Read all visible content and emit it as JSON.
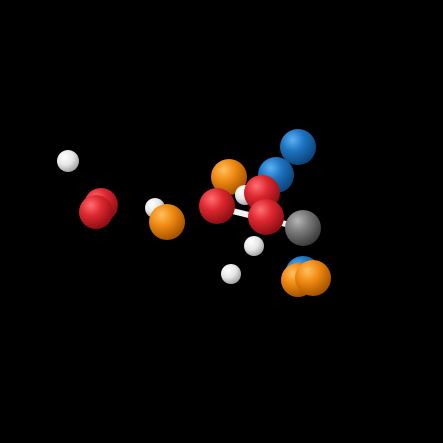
{
  "colors": {
    "background": "#000000",
    "red": "#d8232a",
    "orange": "#f08a12",
    "blue": "#1d74c2",
    "gray": "#7a7a7a",
    "white": "#ffffff"
  },
  "scene": {
    "atoms": [
      {
        "name": "atom-white-left",
        "color": "white"
      },
      {
        "name": "atom-red-left-back",
        "color": "red"
      },
      {
        "name": "atom-red-left-front",
        "color": "red"
      },
      {
        "name": "atom-white-mid-left",
        "color": "white"
      },
      {
        "name": "atom-orange-mid-left",
        "color": "orange"
      },
      {
        "name": "atom-orange-center-top",
        "color": "orange"
      },
      {
        "name": "atom-red-center-left",
        "color": "red"
      },
      {
        "name": "atom-white-center",
        "color": "white"
      },
      {
        "name": "atom-red-center-top",
        "color": "red"
      },
      {
        "name": "atom-red-center-bottom",
        "color": "red"
      },
      {
        "name": "atom-blue-upper-right",
        "color": "blue"
      },
      {
        "name": "atom-blue-upper-right-2",
        "color": "blue"
      },
      {
        "name": "atom-gray-right",
        "color": "gray"
      },
      {
        "name": "atom-white-lower-center",
        "color": "white"
      },
      {
        "name": "atom-white-lower-left",
        "color": "white"
      },
      {
        "name": "atom-blue-lower-right",
        "color": "blue"
      },
      {
        "name": "atom-orange-lower-right",
        "color": "orange"
      },
      {
        "name": "atom-orange-lower-right-2",
        "color": "orange"
      }
    ],
    "bonds": [
      {
        "name": "bond-red-gray"
      }
    ]
  }
}
